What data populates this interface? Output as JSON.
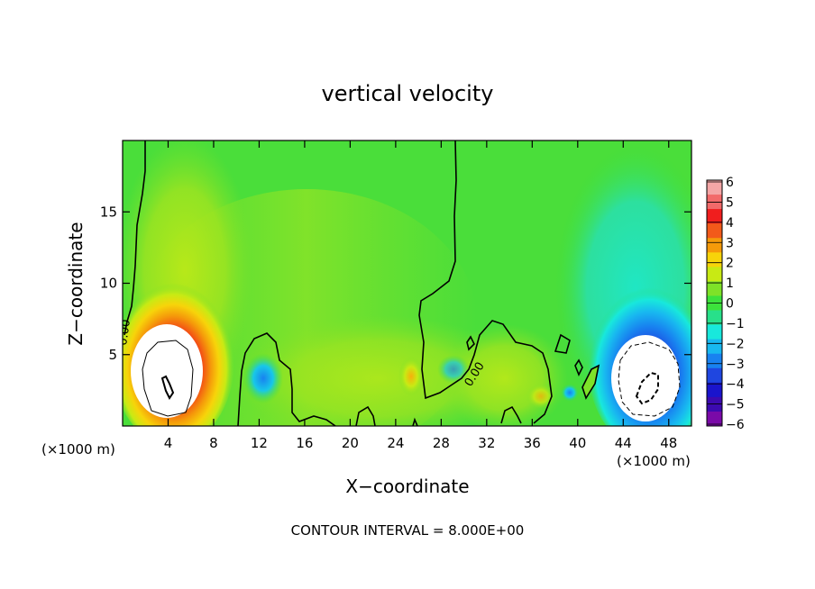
{
  "chart_data": {
    "type": "heatmap",
    "title": "vertical velocity",
    "xlabel": "X−coordinate",
    "ylabel": "Z−coordinate",
    "x_unit_left": "(×1000 m)",
    "x_unit_right": "(×1000 m)",
    "footer": "CONTOUR INTERVAL = 8.000E+00",
    "contour_label": "0.00",
    "xlim": [
      0,
      50
    ],
    "ylim": [
      0,
      20
    ],
    "xticks": [
      4,
      8,
      12,
      16,
      20,
      24,
      28,
      32,
      36,
      40,
      44,
      48
    ],
    "yticks": [
      5,
      10,
      15
    ],
    "colorbar": {
      "levels": [
        6,
        5,
        4,
        3,
        2,
        1,
        0,
        -1,
        -2,
        -3,
        -4,
        -5,
        -6
      ],
      "tick_labels": [
        "6",
        "5",
        "4",
        "3",
        "2",
        "1",
        "0",
        "−1",
        "−2",
        "−3",
        "−4",
        "−5",
        "−6"
      ],
      "colors": [
        "#f4a6a6",
        "#f26a6a",
        "#f01e1e",
        "#f25a1a",
        "#f59a0a",
        "#f7d40a",
        "#c8ea14",
        "#7ee228",
        "#3ce23c",
        "#28e08a",
        "#18e8dc",
        "#18b8f0",
        "#1882f0",
        "#1f46e0",
        "#1a14cc",
        "#3c0ab0",
        "#7a0aa8"
      ]
    },
    "features": [
      {
        "kind": "updraft",
        "x": 4.5,
        "z": 3.5,
        "peak": 8
      },
      {
        "kind": "downdraft",
        "x": 46.5,
        "z": 3.5,
        "peak": -8
      },
      {
        "kind": "weak_updraft",
        "x": 25.5,
        "z": 3.5,
        "peak": 2.5
      },
      {
        "kind": "weak_downdraft",
        "x": 12.5,
        "z": 3.2,
        "peak": -3
      }
    ]
  }
}
